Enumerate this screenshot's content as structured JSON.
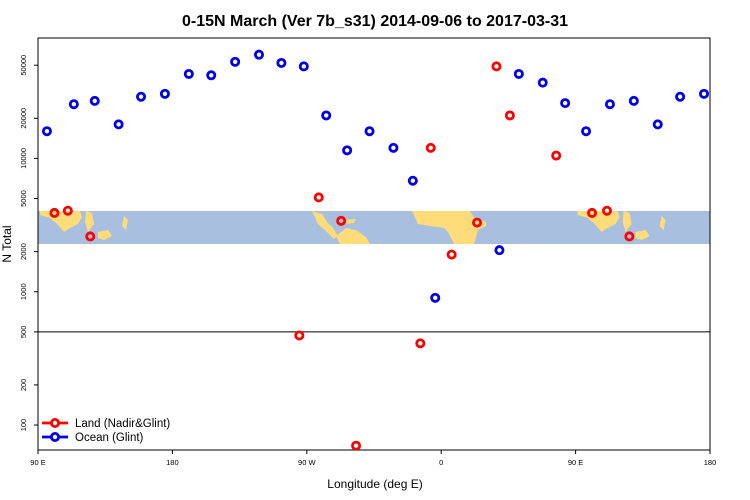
{
  "chart_data": {
    "type": "scatter",
    "title": "0-15N March (Ver 7b_s31)   2014-09-06 to 2017-03-31",
    "xlabel": "Longitude (deg E)",
    "ylabel": "N Total",
    "x_scale": "longitude, two cycles 90 E to 180 E",
    "xlim": [
      90,
      540
    ],
    "x_ticks": [
      {
        "value": 90,
        "label": "90 E"
      },
      {
        "value": 180,
        "label": "180"
      },
      {
        "value": 270,
        "label": "90 W"
      },
      {
        "value": 360,
        "label": "0"
      },
      {
        "value": 450,
        "label": "90 E"
      },
      {
        "value": 540,
        "label": "180"
      }
    ],
    "y_scale": "log",
    "ylim": [
      65,
      80000
    ],
    "y_ticks": [
      {
        "value": 100,
        "label": "100"
      },
      {
        "value": 200,
        "label": "200"
      },
      {
        "value": 500,
        "label": "500"
      },
      {
        "value": 1000,
        "label": "1000"
      },
      {
        "value": 2000,
        "label": "2000"
      },
      {
        "value": 5000,
        "label": "5000"
      },
      {
        "value": 10000,
        "label": "10000"
      },
      {
        "value": 20000,
        "label": "20000"
      },
      {
        "value": 50000,
        "label": "50000"
      }
    ],
    "reference_line_y": 500,
    "grid": false,
    "legend_position": "bottom-left",
    "background_map": {
      "description": "world map strip 0-15N",
      "lat_range": [
        0,
        15
      ],
      "ocean_color": "#a8bfdf",
      "land_color": "#fddc79"
    },
    "series": [
      {
        "name": "Land (Nadir&Glint)",
        "color": "#ff0000",
        "points": [
          {
            "x": 101,
            "y": 3900
          },
          {
            "x": 110,
            "y": 4050
          },
          {
            "x": 125,
            "y": 2600
          },
          {
            "x": 265,
            "y": 470
          },
          {
            "x": 278,
            "y": 5100
          },
          {
            "x": 293,
            "y": 3400
          },
          {
            "x": 303,
            "y": 70
          },
          {
            "x": 346,
            "y": 410
          },
          {
            "x": 353,
            "y": 12000
          },
          {
            "x": 367,
            "y": 1900
          },
          {
            "x": 384,
            "y": 3300
          },
          {
            "x": 397,
            "y": 49000
          },
          {
            "x": 406,
            "y": 21000
          },
          {
            "x": 437,
            "y": 10500
          },
          {
            "x": 461,
            "y": 3900
          },
          {
            "x": 471,
            "y": 4050
          },
          {
            "x": 486,
            "y": 2600
          }
        ]
      },
      {
        "name": "Ocean (Glint)",
        "color": "#0000ee",
        "points": [
          {
            "x": 96,
            "y": 16000
          },
          {
            "x": 114,
            "y": 25500
          },
          {
            "x": 128,
            "y": 27000
          },
          {
            "x": 144,
            "y": 18000
          },
          {
            "x": 159,
            "y": 29000
          },
          {
            "x": 175,
            "y": 30500
          },
          {
            "x": 191,
            "y": 43000
          },
          {
            "x": 206,
            "y": 42000
          },
          {
            "x": 222,
            "y": 53000
          },
          {
            "x": 238,
            "y": 60000
          },
          {
            "x": 253,
            "y": 52000
          },
          {
            "x": 268,
            "y": 49000
          },
          {
            "x": 283,
            "y": 21000
          },
          {
            "x": 297,
            "y": 11500
          },
          {
            "x": 312,
            "y": 16000
          },
          {
            "x": 328,
            "y": 12000
          },
          {
            "x": 341,
            "y": 6800
          },
          {
            "x": 356,
            "y": 900
          },
          {
            "x": 399,
            "y": 2050
          },
          {
            "x": 412,
            "y": 43000
          },
          {
            "x": 428,
            "y": 37000
          },
          {
            "x": 443,
            "y": 26000
          },
          {
            "x": 457,
            "y": 16000
          },
          {
            "x": 473,
            "y": 25500
          },
          {
            "x": 489,
            "y": 27000
          },
          {
            "x": 505,
            "y": 18000
          },
          {
            "x": 520,
            "y": 29000
          },
          {
            "x": 536,
            "y": 30500
          }
        ]
      }
    ]
  }
}
